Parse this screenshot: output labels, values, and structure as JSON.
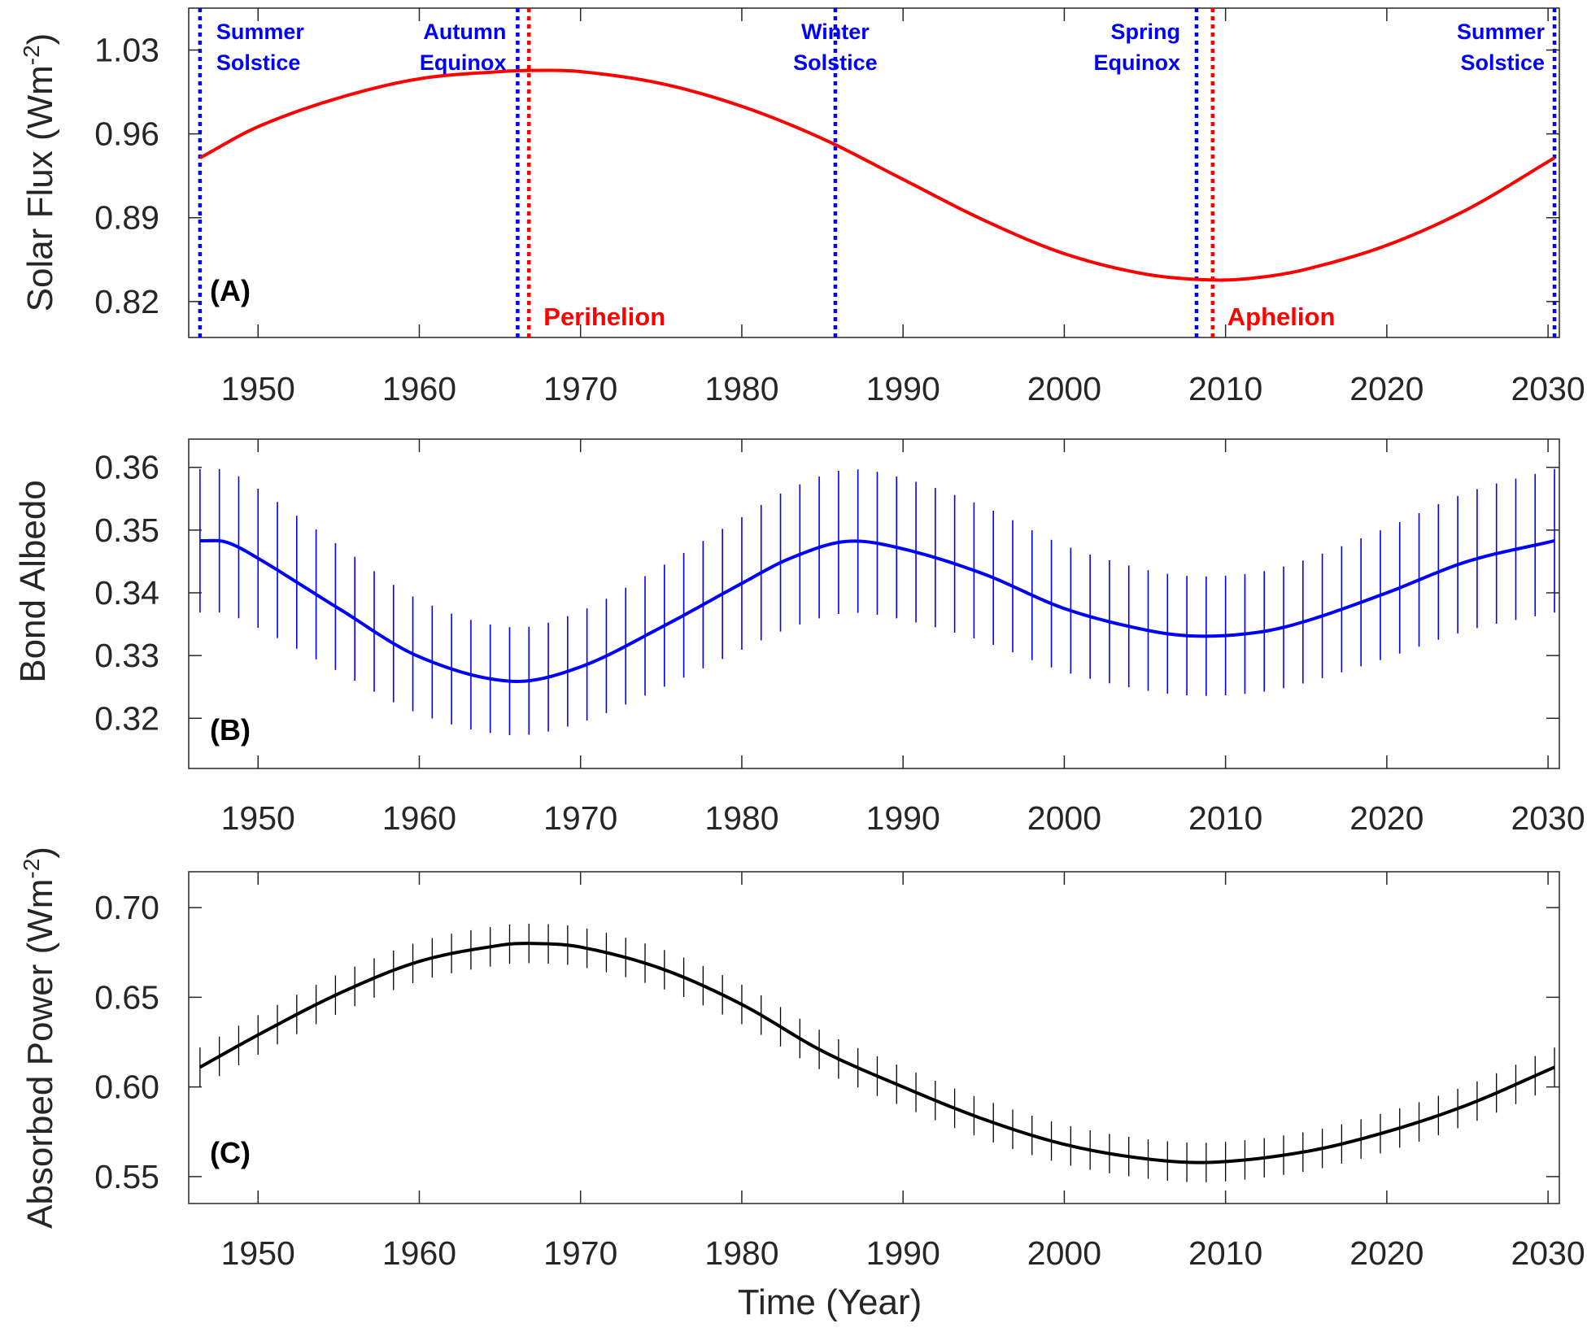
{
  "colors": {
    "flux": "#ff0000",
    "albedo": "#0000ff",
    "power": "#000000",
    "solstice_equinox": "#0000ff",
    "orbital": "#ff0000",
    "axis": "#262626"
  },
  "x_axis": {
    "range": [
      1945.7,
      2030.7
    ],
    "ticks": [
      1950,
      1960,
      1970,
      1980,
      1990,
      2000,
      2010,
      2020,
      2030
    ],
    "tick_labels": [
      "1950",
      "1960",
      "1970",
      "1980",
      "1990",
      "2000",
      "2010",
      "2020",
      "2030"
    ],
    "title": "Time (Year)"
  },
  "chart_data": [
    {
      "type": "line",
      "panel_label": "(A)",
      "ylabel": "Solar Flux (Wm",
      "ylabel_sup": "-2",
      "ylabel_end": ")",
      "ylim": [
        0.79,
        1.065
      ],
      "y_ticks": [
        0.82,
        0.89,
        0.96,
        1.03
      ],
      "y_tick_labels": [
        "0.82",
        "0.89",
        "0.96",
        "1.03"
      ],
      "series": [
        {
          "x": [
            1946.4,
            1950,
            1955,
            1960,
            1965,
            1967.2,
            1970,
            1975,
            1980,
            1985,
            1990,
            1995,
            2000,
            2005,
            2009.2,
            2012,
            2015,
            2020,
            2025,
            2030.4
          ],
          "values": [
            0.94,
            0.966,
            0.99,
            1.006,
            1.012,
            1.013,
            1.012,
            1.002,
            0.983,
            0.956,
            0.922,
            0.888,
            0.86,
            0.843,
            0.838,
            0.84,
            0.847,
            0.867,
            0.897,
            0.94
          ]
        }
      ],
      "vlines": [
        {
          "x": 1946.4,
          "label_line1": "Summer",
          "label_line2": "Solstice",
          "kind": "solstice_equinox"
        },
        {
          "x": 1966.1,
          "label_line1": "Autumn",
          "label_line2": "Equinox",
          "kind": "solstice_equinox"
        },
        {
          "x": 1985.8,
          "label_line1": "Winter",
          "label_line2": "Solstice",
          "kind": "solstice_equinox"
        },
        {
          "x": 2008.2,
          "label_line1": "Spring",
          "label_line2": "Equinox",
          "kind": "solstice_equinox"
        },
        {
          "x": 2030.4,
          "label_line1": "Summer",
          "label_line2": "Solstice",
          "kind": "solstice_equinox"
        },
        {
          "x": 1966.8,
          "label": "Perihelion",
          "kind": "orbital"
        },
        {
          "x": 2009.2,
          "label": "Aphelion",
          "kind": "orbital"
        }
      ]
    },
    {
      "type": "line",
      "panel_label": "(B)",
      "ylabel": "Bond Albedo",
      "ylim": [
        0.312,
        0.3645
      ],
      "y_ticks": [
        0.32,
        0.33,
        0.34,
        0.35,
        0.36
      ],
      "y_tick_labels": [
        "0.32",
        "0.33",
        "0.34",
        "0.35",
        "0.36"
      ],
      "series": [
        {
          "x": [
            1946.4,
            1948,
            1950,
            1955,
            1960,
            1965.7,
            1970,
            1975,
            1980,
            1983,
            1986.5,
            1990,
            1995,
            2000,
            2005,
            2008.2,
            2012,
            2015,
            2020,
            2025,
            2030.4
          ],
          "values": [
            0.3483,
            0.3481,
            0.3455,
            0.3375,
            0.3298,
            0.3259,
            0.3282,
            0.3345,
            0.3415,
            0.3455,
            0.3482,
            0.347,
            0.343,
            0.3375,
            0.3341,
            0.3331,
            0.3337,
            0.3355,
            0.34,
            0.345,
            0.3483
          ]
        }
      ],
      "error_half_width": [
        0.0115,
        0.0085
      ]
    },
    {
      "type": "line",
      "panel_label": "(C)",
      "ylabel": "Absorbed Power (Wm",
      "ylabel_sup": "-2",
      "ylabel_end": ")",
      "ylim": [
        0.535,
        0.72
      ],
      "y_ticks": [
        0.55,
        0.6,
        0.65,
        0.7
      ],
      "y_tick_labels": [
        "0.55",
        "0.60",
        "0.65",
        "0.70"
      ],
      "series": [
        {
          "x": [
            1946.4,
            1950,
            1955,
            1960,
            1965,
            1967,
            1970,
            1975,
            1980,
            1985,
            1990,
            1995,
            2000,
            2005,
            2009.2,
            2015,
            2020,
            2025,
            2030.4
          ],
          "values": [
            0.611,
            0.629,
            0.652,
            0.67,
            0.679,
            0.68,
            0.678,
            0.666,
            0.646,
            0.62,
            0.6,
            0.582,
            0.568,
            0.56,
            0.558,
            0.564,
            0.575,
            0.59,
            0.611
          ]
        }
      ],
      "error_half_width": [
        0.011
      ]
    }
  ]
}
